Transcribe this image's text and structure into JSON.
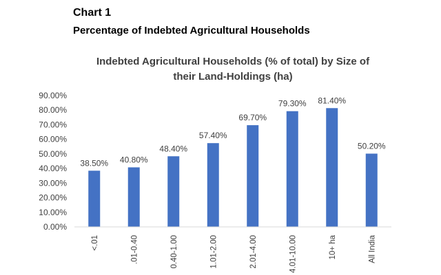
{
  "header": {
    "chart_number": "Chart 1",
    "subtitle": "Percentage of Indebted Agricultural Households"
  },
  "chart_data": {
    "type": "bar",
    "title_lines": [
      "Indebted Agricultural Households (% of total) by Size of",
      "their Land-Holdings (ha)"
    ],
    "categories": [
      "<.01",
      ".01-0.40",
      "0.40-1.00",
      "1.01-2.00",
      "2.01-4.00",
      "4.01-10.00",
      "10+ ha",
      "All India"
    ],
    "values": [
      38.5,
      40.8,
      48.4,
      57.4,
      69.7,
      79.3,
      81.4,
      50.2
    ],
    "data_labels": [
      "38.50%",
      "40.80%",
      "48.40%",
      "57.40%",
      "69.70%",
      "79.30%",
      "81.40%",
      "50.20%"
    ],
    "yticks": [
      "0.00%",
      "10.00%",
      "20.00%",
      "30.00%",
      "40.00%",
      "50.00%",
      "60.00%",
      "70.00%",
      "80.00%",
      "90.00%"
    ],
    "ylim": [
      0,
      90
    ],
    "grid": false,
    "bar_color": "#4472C4",
    "axis_color": "#d9d9d9"
  }
}
